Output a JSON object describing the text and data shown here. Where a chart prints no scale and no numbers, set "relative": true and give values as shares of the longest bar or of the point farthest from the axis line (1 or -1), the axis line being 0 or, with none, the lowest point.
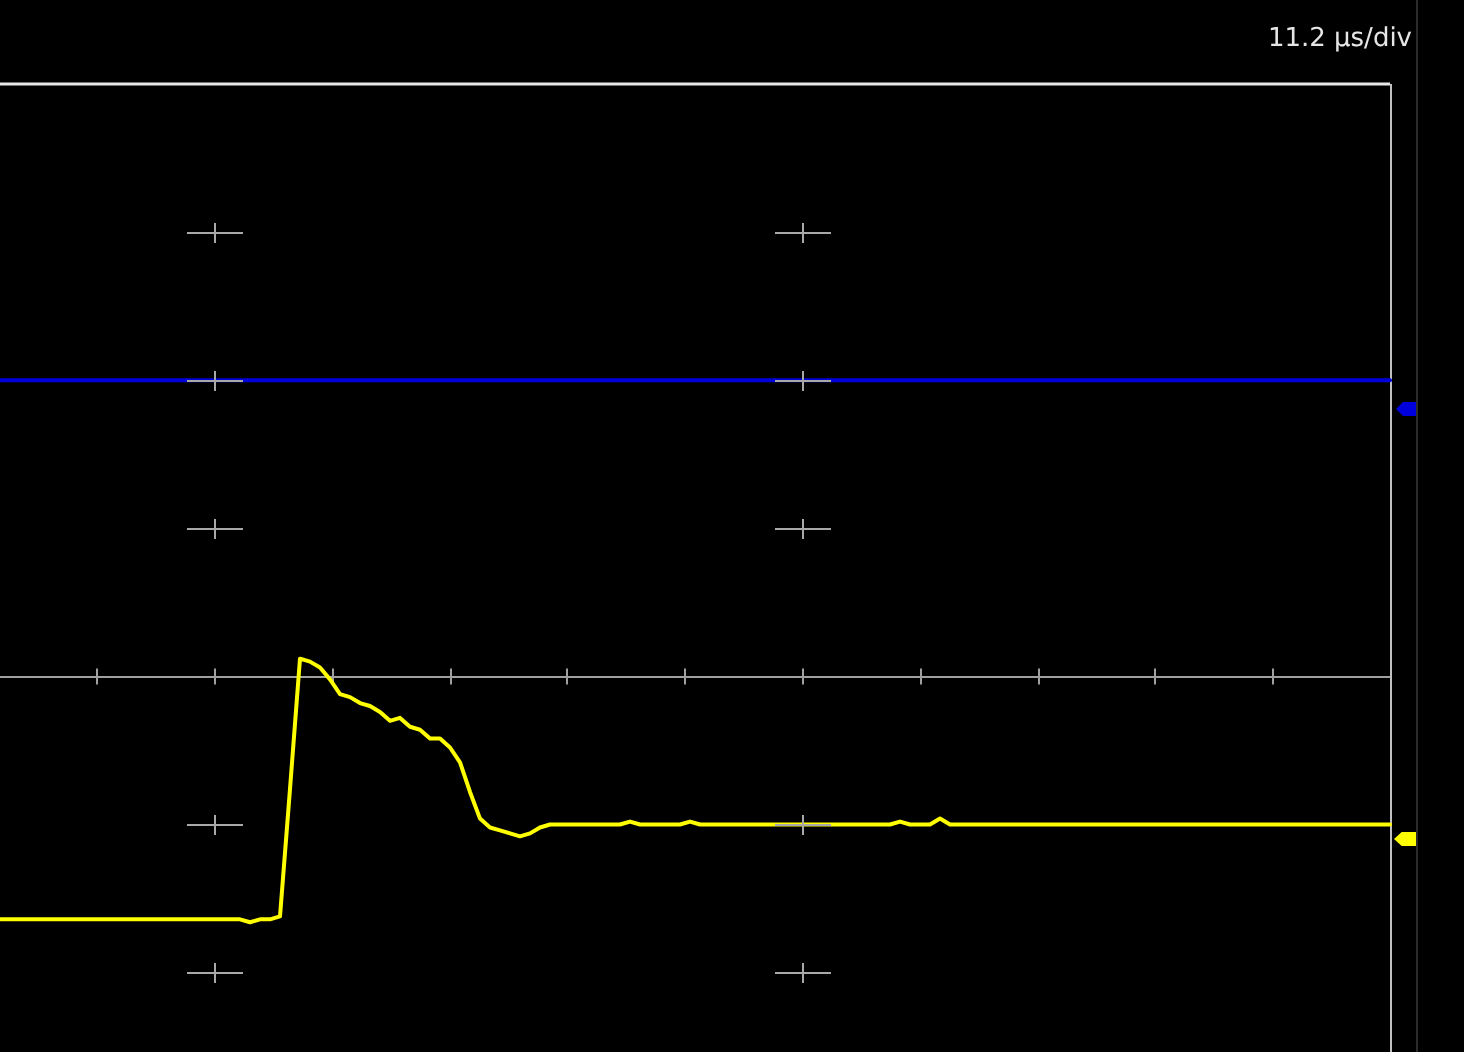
{
  "chart_data": {
    "type": "line",
    "relative": true,
    "categories": [
      null,
      null,
      null,
      null,
      null,
      null,
      null,
      null,
      null,
      null,
      null,
      null,
      null,
      null,
      null,
      null,
      null,
      null,
      null,
      null,
      null,
      null,
      null,
      null,
      null,
      null,
      null,
      null,
      null,
      null,
      null,
      null,
      null,
      null,
      null,
      null,
      null,
      null,
      null,
      null,
      null,
      null,
      null,
      null,
      null,
      null,
      null,
      null,
      null,
      null,
      null,
      null,
      null,
      null,
      null,
      null,
      null,
      null,
      null,
      null,
      null,
      null,
      null,
      null,
      null,
      null,
      null,
      null,
      null,
      null,
      null,
      null,
      null,
      null,
      null,
      null,
      null,
      null,
      null,
      null,
      null,
      null,
      null,
      null,
      null,
      null,
      null,
      null,
      null,
      null,
      null,
      null,
      null,
      null,
      null,
      null,
      null,
      null,
      null,
      null,
      null,
      null,
      null,
      null,
      null,
      null,
      null,
      null,
      null,
      null,
      null,
      null,
      null,
      null,
      null,
      null,
      null,
      null,
      null,
      null,
      null,
      null,
      null,
      null,
      null,
      null,
      null,
      null,
      null,
      null,
      null,
      null,
      null,
      null,
      null,
      null,
      null,
      null,
      null,
      null
    ],
    "series": [
      {
        "color": "#ffff00",
        "values": [
          -0.82,
          -0.82,
          -0.82,
          -0.82,
          -0.82,
          -0.82,
          -0.82,
          -0.82,
          -0.82,
          -0.82,
          -0.82,
          -0.82,
          -0.82,
          -0.82,
          -0.82,
          -0.82,
          -0.82,
          -0.82,
          -0.82,
          -0.82,
          -0.82,
          -0.82,
          -0.82,
          -0.82,
          -0.82,
          -0.83,
          -0.82,
          -0.82,
          -0.81,
          -0.38,
          0.06,
          0.05,
          0.03,
          -0.01,
          -0.06,
          -0.07,
          -0.09,
          -0.1,
          -0.12,
          -0.15,
          -0.14,
          -0.17,
          -0.18,
          -0.21,
          -0.21,
          -0.24,
          -0.29,
          -0.39,
          -0.48,
          -0.51,
          -0.52,
          -0.53,
          -0.54,
          -0.53,
          -0.51,
          -0.5,
          -0.5,
          -0.5,
          -0.5,
          -0.5,
          -0.5,
          -0.5,
          -0.5,
          -0.49,
          -0.5,
          -0.5,
          -0.5,
          -0.5,
          -0.5,
          -0.49,
          -0.5,
          -0.5,
          -0.5,
          -0.5,
          -0.5,
          -0.5,
          -0.5,
          -0.5,
          -0.5,
          -0.5,
          -0.5,
          -0.5,
          -0.5,
          -0.5,
          -0.5,
          -0.5,
          -0.5,
          -0.5,
          -0.5,
          -0.5,
          -0.49,
          -0.5,
          -0.5,
          -0.5,
          -0.48,
          -0.5,
          -0.5,
          -0.5,
          -0.5,
          -0.5,
          -0.5,
          -0.5,
          -0.5,
          -0.5,
          -0.5,
          -0.5,
          -0.5,
          -0.5,
          -0.5,
          -0.5,
          -0.5,
          -0.5,
          -0.5,
          -0.5,
          -0.5,
          -0.5,
          -0.5,
          -0.5,
          -0.5,
          -0.5,
          -0.5,
          -0.5,
          -0.5,
          -0.5,
          -0.5,
          -0.5,
          -0.5,
          -0.5,
          -0.5,
          -0.5,
          -0.5,
          -0.5,
          -0.5,
          -0.5,
          -0.5,
          -0.5,
          -0.5,
          -0.5,
          -0.5,
          -0.5
        ]
      },
      {
        "color": "#0000dc",
        "values": [
          1,
          1,
          1,
          1,
          1,
          1,
          1,
          1,
          1,
          1,
          1,
          1,
          1,
          1,
          1,
          1,
          1,
          1,
          1,
          1,
          1,
          1,
          1,
          1,
          1,
          1,
          1,
          1,
          1,
          1,
          1,
          1,
          1,
          1,
          1,
          1,
          1,
          1,
          1,
          1,
          1,
          1,
          1,
          1,
          1,
          1,
          1,
          1,
          1,
          1,
          1,
          1,
          1,
          1,
          1,
          1,
          1,
          1,
          1,
          1,
          1,
          1,
          1,
          1,
          1,
          1,
          1,
          1,
          1,
          1,
          1,
          1,
          1,
          1,
          1,
          1,
          1,
          1,
          1,
          1,
          1,
          1,
          1,
          1,
          1,
          1,
          1,
          1,
          1,
          1,
          1,
          1,
          1,
          1,
          1,
          1,
          1,
          1,
          1,
          1,
          1,
          1,
          1,
          1,
          1,
          1,
          1,
          1,
          1,
          1,
          1,
          1,
          1,
          1,
          1,
          1,
          1,
          1,
          1,
          1,
          1,
          1,
          1,
          1,
          1,
          1,
          1,
          1,
          1,
          1,
          1,
          1,
          1,
          1,
          1,
          1,
          1,
          1,
          1,
          1
        ]
      }
    ],
    "annotations": [
      "11.2 μs/div"
    ],
    "marker": "none",
    "line_style": "solid",
    "tick_labels": false
  }
}
